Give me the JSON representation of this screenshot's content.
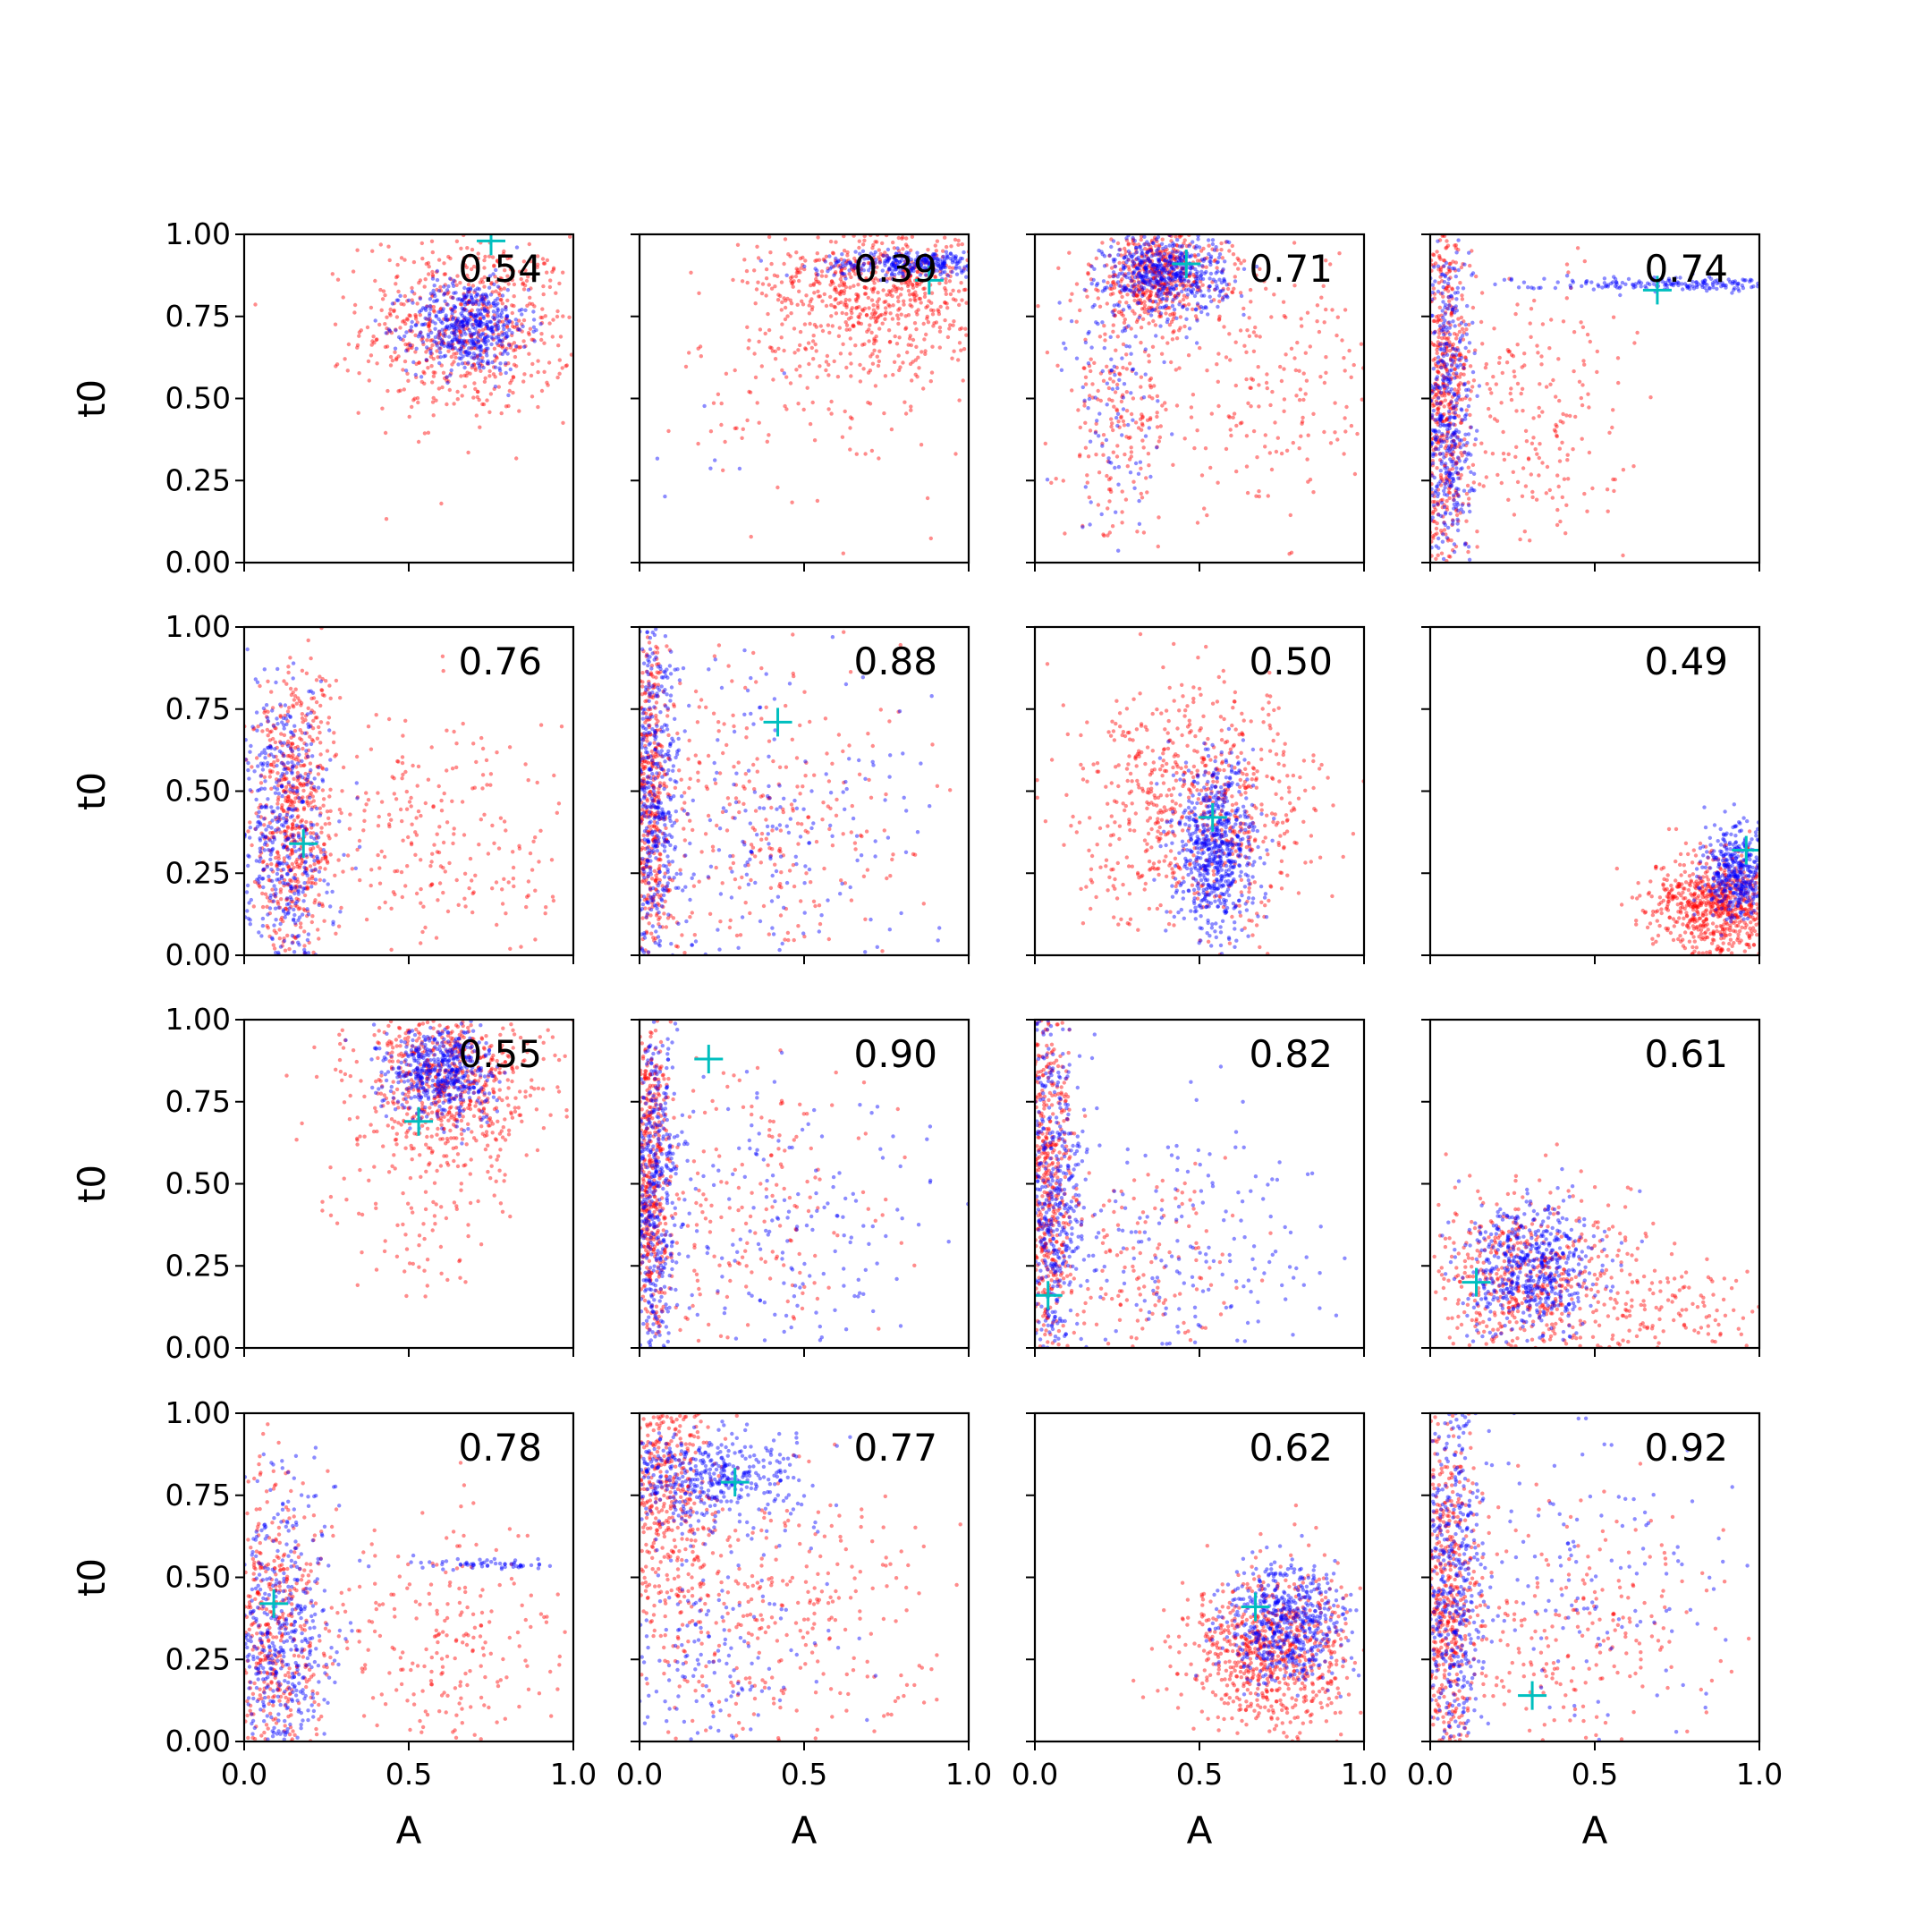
{
  "colors": {
    "series_red": "#ff0000",
    "series_blue": "#0000ff",
    "true_marker": "#00bfbf",
    "axes": "#000000",
    "background": "#ffffff"
  },
  "chart_data": {
    "type": "scatter",
    "layout": "4x4 grid of panels, shared axes",
    "xlabel": "A",
    "ylabel": "t0",
    "xlim": [
      0,
      1
    ],
    "ylim": [
      0,
      1
    ],
    "x_ticks": [
      "0.0",
      "0.5",
      "1.0"
    ],
    "y_ticks": [
      "0.00",
      "0.25",
      "0.50",
      "0.75",
      "1.00"
    ],
    "grid": false,
    "legend": "none",
    "marker_true": "+",
    "panels": [
      {
        "score": "0.54",
        "marker": [
          0.75,
          0.98
        ],
        "series": [
          {
            "color": "red",
            "clusters": [
              {
                "cx": 0.68,
                "cy": 0.72,
                "sx": 0.16,
                "sy": 0.14,
                "n": 650
              }
            ]
          },
          {
            "color": "blue",
            "clusters": [
              {
                "cx": 0.68,
                "cy": 0.72,
                "sx": 0.09,
                "sy": 0.07,
                "n": 500
              }
            ]
          }
        ]
      },
      {
        "score": "0.39",
        "marker": [
          0.88,
          0.86
        ],
        "series": [
          {
            "color": "red",
            "clusters": [
              {
                "cx": 0.72,
                "cy": 0.85,
                "sx": 0.18,
                "sy": 0.12,
                "n": 700
              },
              {
                "cx": 0.6,
                "cy": 0.55,
                "sx": 0.22,
                "sy": 0.18,
                "n": 140
              }
            ]
          },
          {
            "color": "blue",
            "clusters": [
              {
                "cx": 0.85,
                "cy": 0.91,
                "sx": 0.15,
                "sy": 0.02,
                "n": 320
              },
              {
                "cx": 0.15,
                "cy": 0.25,
                "sx": 0.08,
                "sy": 0.15,
                "n": 10
              }
            ]
          }
        ]
      },
      {
        "score": "0.71",
        "marker": [
          0.46,
          0.91
        ],
        "series": [
          {
            "color": "red",
            "clusters": [
              {
                "cx": 0.38,
                "cy": 0.88,
                "sx": 0.1,
                "sy": 0.08,
                "n": 500
              },
              {
                "cx": 0.25,
                "cy": 0.45,
                "sx": 0.08,
                "sy": 0.2,
                "n": 200
              },
              {
                "cx": 0.7,
                "cy": 0.55,
                "sx": 0.2,
                "sy": 0.2,
                "n": 220
              }
            ]
          },
          {
            "color": "blue",
            "clusters": [
              {
                "cx": 0.4,
                "cy": 0.88,
                "sx": 0.09,
                "sy": 0.06,
                "n": 500
              },
              {
                "cx": 0.25,
                "cy": 0.5,
                "sx": 0.08,
                "sy": 0.2,
                "n": 100
              }
            ]
          }
        ]
      },
      {
        "score": "0.74",
        "marker": [
          0.69,
          0.83
        ],
        "series": [
          {
            "color": "red",
            "clusters": [
              {
                "cx": 0.04,
                "cy": 0.5,
                "sx": 0.04,
                "sy": 0.3,
                "n": 600
              },
              {
                "cx": 0.3,
                "cy": 0.45,
                "sx": 0.15,
                "sy": 0.22,
                "n": 220
              }
            ]
          },
          {
            "color": "blue",
            "clusters": [
              {
                "cx": 0.05,
                "cy": 0.45,
                "sx": 0.04,
                "sy": 0.3,
                "n": 500
              },
              {
                "cx": 0.75,
                "cy": 0.85,
                "sx": 0.25,
                "sy": 0.01,
                "n": 200
              }
            ]
          }
        ]
      },
      {
        "score": "0.76",
        "marker": [
          0.18,
          0.34
        ],
        "series": [
          {
            "color": "red",
            "clusters": [
              {
                "cx": 0.15,
                "cy": 0.4,
                "sx": 0.06,
                "sy": 0.25,
                "n": 600
              },
              {
                "cx": 0.6,
                "cy": 0.35,
                "sx": 0.22,
                "sy": 0.2,
                "n": 250
              }
            ]
          },
          {
            "color": "blue",
            "clusters": [
              {
                "cx": 0.12,
                "cy": 0.35,
                "sx": 0.07,
                "sy": 0.25,
                "n": 500
              }
            ]
          }
        ]
      },
      {
        "score": "0.88",
        "marker": [
          0.42,
          0.71
        ],
        "series": [
          {
            "color": "red",
            "clusters": [
              {
                "cx": 0.03,
                "cy": 0.5,
                "sx": 0.03,
                "sy": 0.3,
                "n": 500
              },
              {
                "cx": 0.4,
                "cy": 0.4,
                "sx": 0.25,
                "sy": 0.25,
                "n": 300
              }
            ]
          },
          {
            "color": "blue",
            "clusters": [
              {
                "cx": 0.04,
                "cy": 0.45,
                "sx": 0.04,
                "sy": 0.3,
                "n": 500
              },
              {
                "cx": 0.4,
                "cy": 0.35,
                "sx": 0.25,
                "sy": 0.25,
                "n": 200
              }
            ]
          }
        ]
      },
      {
        "score": "0.50",
        "marker": [
          0.54,
          0.42
        ],
        "series": [
          {
            "color": "red",
            "clusters": [
              {
                "cx": 0.5,
                "cy": 0.45,
                "sx": 0.18,
                "sy": 0.18,
                "n": 700
              }
            ]
          },
          {
            "color": "blue",
            "clusters": [
              {
                "cx": 0.55,
                "cy": 0.32,
                "sx": 0.06,
                "sy": 0.14,
                "n": 650
              }
            ]
          }
        ]
      },
      {
        "score": "0.49",
        "marker": [
          0.96,
          0.32
        ],
        "series": [
          {
            "color": "red",
            "clusters": [
              {
                "cx": 0.88,
                "cy": 0.15,
                "sx": 0.1,
                "sy": 0.08,
                "n": 750
              }
            ]
          },
          {
            "color": "blue",
            "clusters": [
              {
                "cx": 0.93,
                "cy": 0.25,
                "sx": 0.05,
                "sy": 0.07,
                "n": 400
              }
            ]
          }
        ]
      },
      {
        "score": "0.55",
        "marker": [
          0.53,
          0.69
        ],
        "series": [
          {
            "color": "red",
            "clusters": [
              {
                "cx": 0.62,
                "cy": 0.82,
                "sx": 0.14,
                "sy": 0.13,
                "n": 700
              },
              {
                "cx": 0.55,
                "cy": 0.45,
                "sx": 0.15,
                "sy": 0.15,
                "n": 100
              }
            ]
          },
          {
            "color": "blue",
            "clusters": [
              {
                "cx": 0.6,
                "cy": 0.84,
                "sx": 0.08,
                "sy": 0.07,
                "n": 500
              }
            ]
          }
        ]
      },
      {
        "score": "0.90",
        "marker": [
          0.21,
          0.88
        ],
        "series": [
          {
            "color": "red",
            "clusters": [
              {
                "cx": 0.03,
                "cy": 0.5,
                "sx": 0.03,
                "sy": 0.3,
                "n": 500
              },
              {
                "cx": 0.35,
                "cy": 0.4,
                "sx": 0.2,
                "sy": 0.25,
                "n": 200
              }
            ]
          },
          {
            "color": "blue",
            "clusters": [
              {
                "cx": 0.04,
                "cy": 0.45,
                "sx": 0.04,
                "sy": 0.3,
                "n": 500
              },
              {
                "cx": 0.45,
                "cy": 0.35,
                "sx": 0.25,
                "sy": 0.25,
                "n": 200
              }
            ]
          }
        ]
      },
      {
        "score": "0.82",
        "marker": [
          0.04,
          0.16
        ],
        "series": [
          {
            "color": "red",
            "clusters": [
              {
                "cx": 0.04,
                "cy": 0.5,
                "sx": 0.04,
                "sy": 0.3,
                "n": 550
              },
              {
                "cx": 0.3,
                "cy": 0.25,
                "sx": 0.15,
                "sy": 0.15,
                "n": 150
              }
            ]
          },
          {
            "color": "blue",
            "clusters": [
              {
                "cx": 0.05,
                "cy": 0.45,
                "sx": 0.05,
                "sy": 0.3,
                "n": 500
              },
              {
                "cx": 0.45,
                "cy": 0.3,
                "sx": 0.25,
                "sy": 0.2,
                "n": 200
              }
            ]
          }
        ]
      },
      {
        "score": "0.61",
        "marker": [
          0.14,
          0.2
        ],
        "series": [
          {
            "color": "red",
            "clusters": [
              {
                "cx": 0.3,
                "cy": 0.2,
                "sx": 0.15,
                "sy": 0.14,
                "n": 550
              },
              {
                "cx": 0.75,
                "cy": 0.12,
                "sx": 0.18,
                "sy": 0.1,
                "n": 150
              }
            ]
          },
          {
            "color": "blue",
            "clusters": [
              {
                "cx": 0.3,
                "cy": 0.24,
                "sx": 0.1,
                "sy": 0.1,
                "n": 550
              }
            ]
          }
        ]
      },
      {
        "score": "0.78",
        "marker": [
          0.09,
          0.42
        ],
        "series": [
          {
            "color": "red",
            "clusters": [
              {
                "cx": 0.08,
                "cy": 0.3,
                "sx": 0.08,
                "sy": 0.25,
                "n": 500
              },
              {
                "cx": 0.6,
                "cy": 0.3,
                "sx": 0.22,
                "sy": 0.2,
                "n": 250
              }
            ]
          },
          {
            "color": "blue",
            "clusters": [
              {
                "cx": 0.1,
                "cy": 0.3,
                "sx": 0.08,
                "sy": 0.25,
                "n": 500
              },
              {
                "cx": 0.72,
                "cy": 0.54,
                "sx": 0.12,
                "sy": 0.01,
                "n": 60
              }
            ]
          }
        ]
      },
      {
        "score": "0.77",
        "marker": [
          0.29,
          0.79
        ],
        "series": [
          {
            "color": "red",
            "clusters": [
              {
                "cx": 0.08,
                "cy": 0.75,
                "sx": 0.08,
                "sy": 0.2,
                "n": 500
              },
              {
                "cx": 0.35,
                "cy": 0.35,
                "sx": 0.25,
                "sy": 0.22,
                "n": 350
              }
            ]
          },
          {
            "color": "blue",
            "clusters": [
              {
                "cx": 0.18,
                "cy": 0.8,
                "sx": 0.14,
                "sy": 0.07,
                "n": 450
              },
              {
                "cx": 0.2,
                "cy": 0.3,
                "sx": 0.2,
                "sy": 0.25,
                "n": 200
              }
            ]
          }
        ]
      },
      {
        "score": "0.62",
        "marker": [
          0.67,
          0.41
        ],
        "series": [
          {
            "color": "red",
            "clusters": [
              {
                "cx": 0.72,
                "cy": 0.27,
                "sx": 0.13,
                "sy": 0.12,
                "n": 750
              }
            ]
          },
          {
            "color": "blue",
            "clusters": [
              {
                "cx": 0.76,
                "cy": 0.36,
                "sx": 0.09,
                "sy": 0.09,
                "n": 550
              }
            ]
          }
        ]
      },
      {
        "score": "0.92",
        "marker": [
          0.31,
          0.14
        ],
        "series": [
          {
            "color": "red",
            "clusters": [
              {
                "cx": 0.05,
                "cy": 0.45,
                "sx": 0.05,
                "sy": 0.3,
                "n": 550
              },
              {
                "cx": 0.45,
                "cy": 0.3,
                "sx": 0.22,
                "sy": 0.22,
                "n": 250
              }
            ]
          },
          {
            "color": "blue",
            "clusters": [
              {
                "cx": 0.06,
                "cy": 0.5,
                "sx": 0.05,
                "sy": 0.3,
                "n": 500
              },
              {
                "cx": 0.5,
                "cy": 0.45,
                "sx": 0.25,
                "sy": 0.25,
                "n": 150
              }
            ]
          }
        ]
      }
    ]
  }
}
